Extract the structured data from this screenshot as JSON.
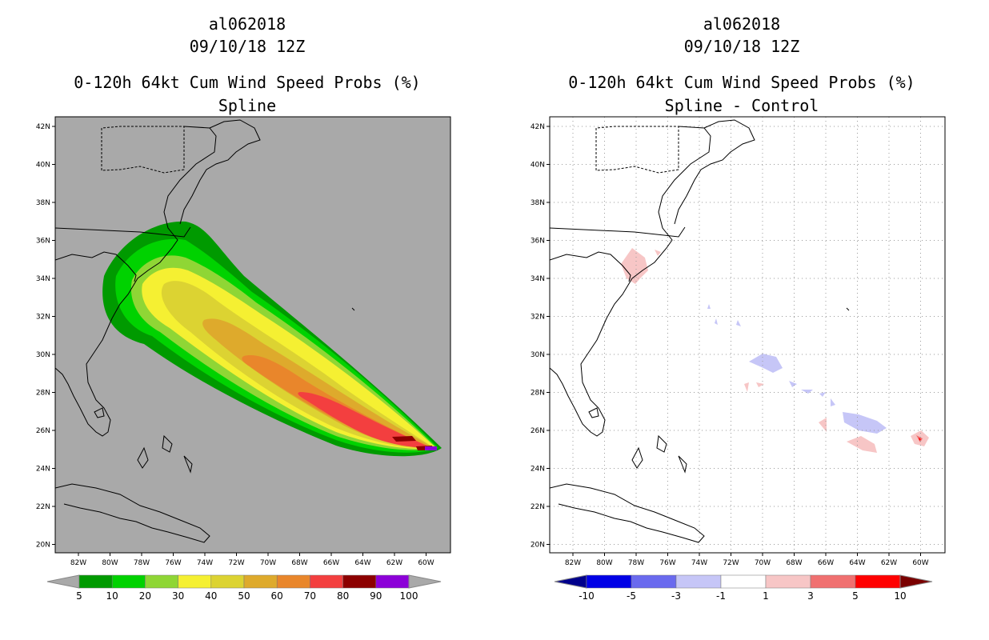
{
  "left_panel": {
    "title": "al062018",
    "date": "09/10/18 12Z",
    "product": "0-120h 64kt Cum Wind Speed Probs (%)",
    "subtitle": "Spline",
    "background": "#a9a9a9",
    "colorbar": {
      "ticks": [
        "5",
        "10",
        "20",
        "30",
        "40",
        "50",
        "60",
        "70",
        "80",
        "90",
        "100"
      ],
      "under_color": "#a9a9a9",
      "over_color": "#a9a9a9",
      "colors": [
        "#009a00",
        "#00d200",
        "#8fd635",
        "#f5f032",
        "#dcd332",
        "#deaa2c",
        "#e9862b",
        "#f33f3f",
        "#8c0000",
        "#8c00d8"
      ]
    }
  },
  "right_panel": {
    "title": "al062018",
    "date": "09/10/18 12Z",
    "product": "0-120h 64kt Cum Wind Speed Probs (%)",
    "subtitle": "Spline - Control",
    "background": "#ffffff",
    "colorbar": {
      "ticks": [
        "-10",
        "-5",
        "-3",
        "-1",
        "1",
        "3",
        "5",
        "10"
      ],
      "under_color": "#00008b",
      "over_color": "#7a0000",
      "colors": [
        "#0000e6",
        "#6a6aee",
        "#c6c6f7",
        "#ffffff",
        "#f7c6c6",
        "#f07070",
        "#ff0000"
      ]
    }
  },
  "axes": {
    "lat_labels": [
      "42N",
      "40N",
      "38N",
      "36N",
      "34N",
      "32N",
      "30N",
      "28N",
      "26N",
      "24N",
      "22N",
      "20N"
    ],
    "lon_labels": [
      "82W",
      "80W",
      "78W",
      "76W",
      "74W",
      "72W",
      "70W",
      "68W",
      "66W",
      "64W",
      "62W",
      "60W"
    ]
  }
}
